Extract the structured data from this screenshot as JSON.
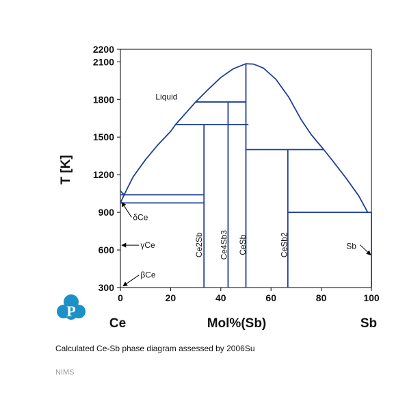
{
  "chart_data": {
    "type": "phase-diagram",
    "title": "",
    "xlabel": "Mol%(Sb)",
    "ylabel": "T [K]",
    "x_range": [
      0,
      100
    ],
    "y_range": [
      300,
      2200
    ],
    "x_ticks": [
      0,
      20,
      40,
      60,
      80,
      100
    ],
    "y_ticks": [
      300,
      600,
      900,
      1200,
      1500,
      1800,
      2100,
      2200
    ],
    "left_component": "Ce",
    "right_component": "Sb",
    "line_color": "#1f3f96",
    "liquidus": [
      [
        1.5,
        1040
      ],
      [
        5,
        1180
      ],
      [
        10,
        1320
      ],
      [
        15,
        1440
      ],
      [
        20,
        1545
      ],
      [
        22,
        1600
      ],
      [
        30,
        1780
      ],
      [
        35,
        1880
      ],
      [
        40,
        1975
      ],
      [
        45,
        2045
      ],
      [
        50,
        2085
      ],
      [
        53,
        2082
      ],
      [
        57,
        2050
      ],
      [
        62,
        1960
      ],
      [
        67,
        1820
      ],
      [
        72,
        1640
      ],
      [
        76,
        1520
      ],
      [
        81,
        1400
      ],
      [
        85,
        1300
      ],
      [
        90,
        1170
      ],
      [
        95,
        1030
      ],
      [
        98.5,
        900
      ]
    ],
    "ce_side_curve": [
      [
        0,
        1071
      ],
      [
        1.5,
        1040
      ],
      [
        0,
        975
      ]
    ],
    "horizontal_lines": [
      {
        "x": [
          0,
          33.3
        ],
        "y": 1040
      },
      {
        "x": [
          0,
          33.3
        ],
        "y": 975
      },
      {
        "x": [
          22,
          51
        ],
        "y": 1600
      },
      {
        "x": [
          30,
          50
        ],
        "y": 1780
      },
      {
        "x": [
          50,
          81
        ],
        "y": 1400
      },
      {
        "x": [
          66.7,
          100
        ],
        "y": 900
      }
    ],
    "vertical_lines": [
      {
        "x": 33.3,
        "y": [
          300,
          1600
        ]
      },
      {
        "x": 42.9,
        "y": [
          300,
          1780
        ]
      },
      {
        "x": 50,
        "y": [
          300,
          2085
        ]
      },
      {
        "x": 66.7,
        "y": [
          300,
          1400
        ]
      },
      {
        "x": 100,
        "y": [
          300,
          900
        ]
      }
    ],
    "phase_labels": [
      {
        "text": "Liquid",
        "x": 14,
        "y": 1800,
        "rotate": false
      },
      {
        "text": "Ce2Sb",
        "x": 31,
        "y": 640,
        "rotate": true
      },
      {
        "text": "Ce4Sb3",
        "x": 41,
        "y": 640,
        "rotate": true
      },
      {
        "text": "CeSb",
        "x": 48.5,
        "y": 640,
        "rotate": true
      },
      {
        "text": "CeSb2",
        "x": 65,
        "y": 640,
        "rotate": true
      }
    ],
    "arrow_labels": [
      {
        "text": "δCe",
        "text_x": 5,
        "text_y": 860,
        "to_x": 0,
        "to_y": 980
      },
      {
        "text": "γCe",
        "text_x": 8,
        "text_y": 638,
        "to_x": 0,
        "to_y": 638
      },
      {
        "text": "βCe",
        "text_x": 8,
        "text_y": 400,
        "to_x": 0.5,
        "to_y": 312
      },
      {
        "text": "Sb",
        "text_x": 90,
        "text_y": 630,
        "to_x": 100,
        "to_y": 560
      }
    ]
  },
  "caption": "Calculated Ce-Sb phase diagram assessed by 2006Su",
  "footer": "NIMS"
}
